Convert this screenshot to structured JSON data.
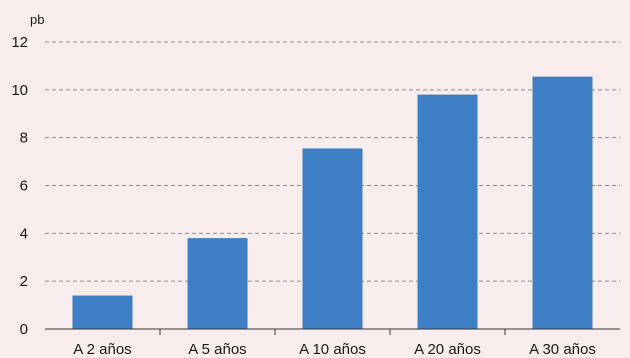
{
  "chart_data": {
    "type": "bar",
    "categories": [
      "A 2 años",
      "A 5 años",
      "A 10 años",
      "A 20 años",
      "A 30 años"
    ],
    "values": [
      1.4,
      3.8,
      7.55,
      9.8,
      10.55
    ],
    "ylabel": "pb",
    "ylim": [
      0,
      12
    ],
    "yticks": [
      0,
      2,
      4,
      6,
      8,
      10,
      12
    ],
    "grid": true,
    "bar_color": "#3d7ec4",
    "background": "#f8ecec"
  }
}
